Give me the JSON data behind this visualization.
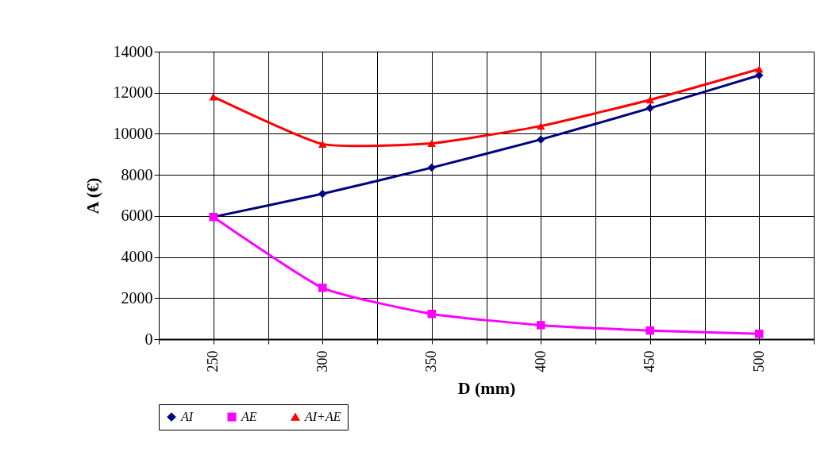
{
  "chart_data": {
    "type": "line",
    "xlabel": "D (mm)",
    "ylabel": "A (€)",
    "x": [
      250,
      300,
      350,
      400,
      450,
      500
    ],
    "series": [
      {
        "name": "AI",
        "color": "#000080",
        "marker": "diamond",
        "values": [
          5950,
          7080,
          8350,
          9720,
          11250,
          12850
        ]
      },
      {
        "name": "AE",
        "color": "#ff00ff",
        "marker": "square",
        "values": [
          5950,
          2500,
          1230,
          680,
          420,
          260
        ]
      },
      {
        "name": "AI+AE",
        "color": "#ff0000",
        "marker": "triangle",
        "values": [
          11800,
          9500,
          9530,
          10380,
          11650,
          13150
        ]
      }
    ],
    "xlim": [
      225,
      525
    ],
    "xticks": [
      {
        "value": 225,
        "label": null
      },
      250,
      {
        "value": 275,
        "label": null
      },
      300,
      {
        "value": 325,
        "label": null
      },
      350,
      {
        "value": 375,
        "label": null
      },
      400,
      {
        "value": 425,
        "label": null
      },
      450,
      {
        "value": 475,
        "label": null
      },
      500,
      {
        "value": 525,
        "label": null
      }
    ],
    "ylim": [
      0,
      14000
    ],
    "yticks": [
      0,
      2000,
      4000,
      6000,
      8000,
      10000,
      12000,
      14000
    ],
    "grid": true,
    "legend": "bottom",
    "line_style": "solid"
  }
}
